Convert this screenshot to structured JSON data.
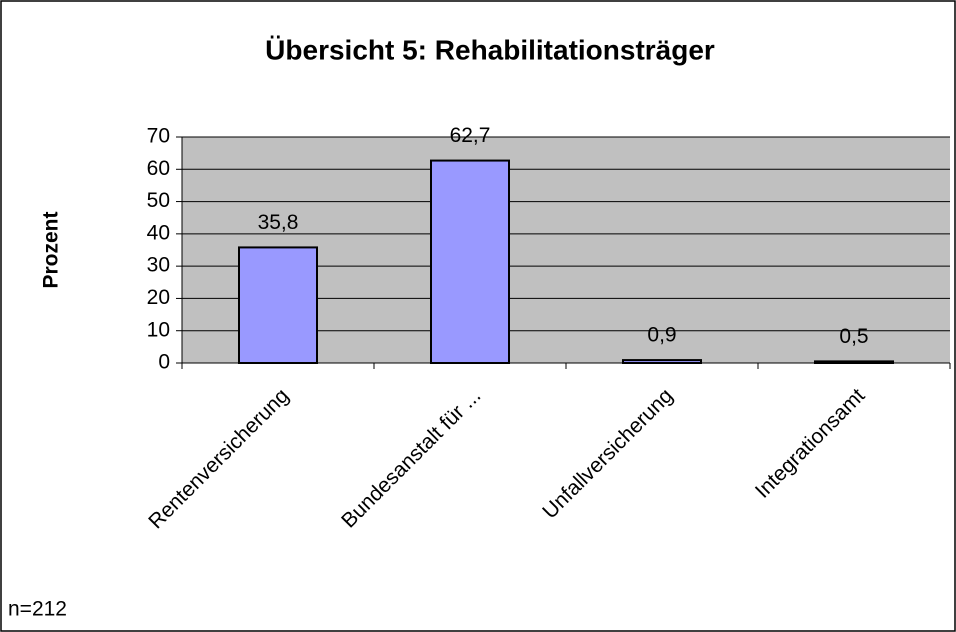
{
  "chart_data": {
    "type": "bar",
    "title": "Übersicht 5: Rehabilitationsträger",
    "y_label": "Prozent",
    "note": "n=212",
    "categories": [
      "Rentenversicherung",
      "Bundesanstalt für ...",
      "Unfallversicherung",
      "Integrationsamt"
    ],
    "values": [
      35.8,
      62.7,
      0.9,
      0.5
    ],
    "value_labels": [
      "35,8",
      "62,7",
      "0,9",
      "0,5"
    ],
    "color": "#9999ff",
    "ylim": [
      0,
      70
    ],
    "yticks": [
      0,
      10,
      20,
      30,
      40,
      50,
      60,
      70
    ],
    "grid": true
  }
}
